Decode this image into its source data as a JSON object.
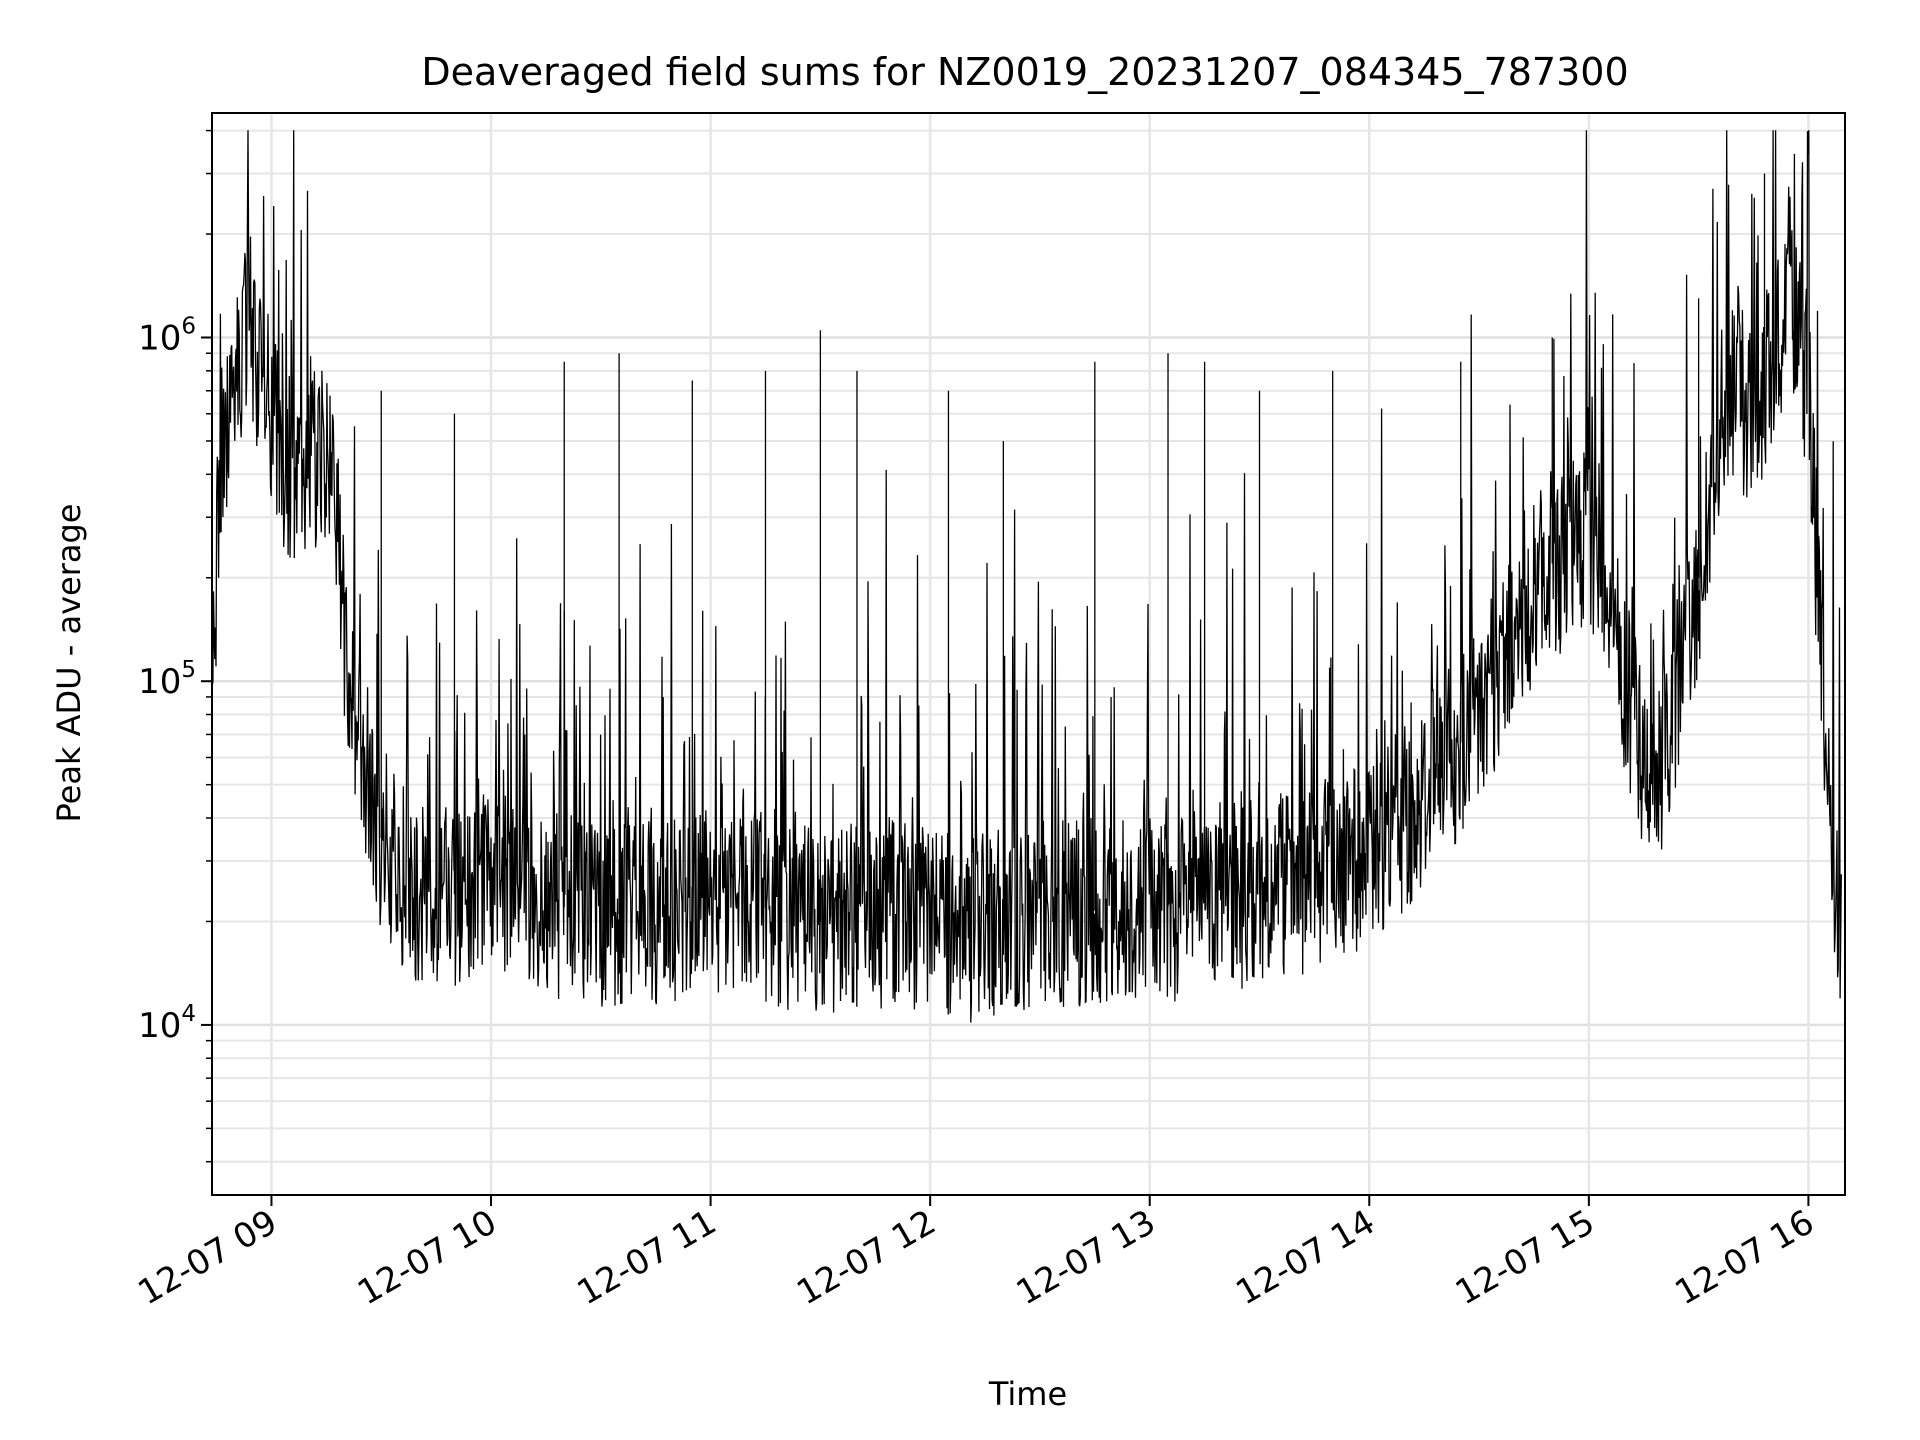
{
  "chart_data": {
    "type": "line",
    "title": "Deaveraged field sums for NZ0019_20231207_084345_787300",
    "xlabel": "Time",
    "ylabel": "Peak ADU - average",
    "yscale": "log",
    "ylim": [
      3200,
      4500000
    ],
    "xlim": [
      "2023-12-07 08:43:45",
      "2023-12-07 16:10:00"
    ],
    "grid": true,
    "x_ticks": [
      {
        "label": "12-07 09",
        "time": "2023-12-07 09:00:00"
      },
      {
        "label": "12-07 10",
        "time": "2023-12-07 10:00:00"
      },
      {
        "label": "12-07 11",
        "time": "2023-12-07 11:00:00"
      },
      {
        "label": "12-07 12",
        "time": "2023-12-07 12:00:00"
      },
      {
        "label": "12-07 13",
        "time": "2023-12-07 13:00:00"
      },
      {
        "label": "12-07 14",
        "time": "2023-12-07 14:00:00"
      },
      {
        "label": "12-07 15",
        "time": "2023-12-07 15:00:00"
      },
      {
        "label": "12-07 16",
        "time": "2023-12-07 16:00:00"
      }
    ],
    "y_ticks": [
      {
        "base": "10",
        "exp": "4",
        "value": 10000
      },
      {
        "base": "10",
        "exp": "5",
        "value": 100000
      },
      {
        "base": "10",
        "exp": "6",
        "value": 1000000
      }
    ],
    "series": [
      {
        "color": "#000000",
        "x": [
          "2023-12-07 08:44",
          "2023-12-07 08:47",
          "2023-12-07 08:50",
          "2023-12-07 08:53",
          "2023-12-07 08:56",
          "2023-12-07 08:58",
          "2023-12-07 09:00",
          "2023-12-07 09:03",
          "2023-12-07 09:06",
          "2023-12-07 09:09",
          "2023-12-07 09:12",
          "2023-12-07 09:15",
          "2023-12-07 09:18",
          "2023-12-07 09:21",
          "2023-12-07 09:25",
          "2023-12-07 09:30",
          "2023-12-07 09:35",
          "2023-12-07 09:40",
          "2023-12-07 09:45",
          "2023-12-07 09:50",
          "2023-12-07 09:55",
          "2023-12-07 10:00",
          "2023-12-07 10:10",
          "2023-12-07 10:20",
          "2023-12-07 10:30",
          "2023-12-07 10:40",
          "2023-12-07 10:50",
          "2023-12-07 11:00",
          "2023-12-07 11:10",
          "2023-12-07 11:20",
          "2023-12-07 11:30",
          "2023-12-07 11:40",
          "2023-12-07 11:50",
          "2023-12-07 12:00",
          "2023-12-07 12:10",
          "2023-12-07 12:20",
          "2023-12-07 12:30",
          "2023-12-07 12:40",
          "2023-12-07 12:50",
          "2023-12-07 13:00",
          "2023-12-07 13:10",
          "2023-12-07 13:20",
          "2023-12-07 13:30",
          "2023-12-07 13:40",
          "2023-12-07 13:50",
          "2023-12-07 14:00",
          "2023-12-07 14:10",
          "2023-12-07 14:20",
          "2023-12-07 14:30",
          "2023-12-07 14:40",
          "2023-12-07 14:50",
          "2023-12-07 15:00",
          "2023-12-07 15:05",
          "2023-12-07 15:10",
          "2023-12-07 15:15",
          "2023-12-07 15:20",
          "2023-12-07 15:25",
          "2023-12-07 15:30",
          "2023-12-07 15:35",
          "2023-12-07 15:40",
          "2023-12-07 15:45",
          "2023-12-07 15:50",
          "2023-12-07 15:55",
          "2023-12-07 16:00",
          "2023-12-07 16:03",
          "2023-12-07 16:06",
          "2023-12-07 16:08",
          "2023-12-07 16:09"
        ],
        "y": [
          150000,
          400000,
          700000,
          1200000,
          900000,
          800000,
          600000,
          420000,
          400000,
          450000,
          450000,
          420000,
          300000,
          100000,
          60000,
          35000,
          28000,
          25000,
          25000,
          24000,
          25000,
          26000,
          24000,
          22000,
          21000,
          21000,
          22000,
          23000,
          24000,
          20000,
          20000,
          21000,
          21000,
          20000,
          19000,
          20000,
          21000,
          21000,
          22000,
          22000,
          22000,
          24000,
          24000,
          26000,
          28000,
          32000,
          40000,
          55000,
          80000,
          140000,
          220000,
          250000,
          200000,
          100000,
          55000,
          60000,
          100000,
          200000,
          400000,
          700000,
          600000,
          800000,
          1500000,
          700000,
          150000,
          40000,
          22000,
          15000
        ]
      }
    ],
    "spikes": {
      "x": [
        "2023-12-07 09:30",
        "2023-12-07 09:50",
        "2023-12-07 10:20",
        "2023-12-07 10:35",
        "2023-12-07 10:55",
        "2023-12-07 11:15",
        "2023-12-07 11:30",
        "2023-12-07 11:40",
        "2023-12-07 12:05",
        "2023-12-07 12:20",
        "2023-12-07 12:45",
        "2023-12-07 13:05",
        "2023-12-07 13:15",
        "2023-12-07 13:30",
        "2023-12-07 13:50",
        "2023-12-07 14:25",
        "2023-12-07 14:50",
        "2023-12-07 15:30",
        "2023-12-07 15:48"
      ],
      "y": [
        700000,
        600000,
        850000,
        900000,
        750000,
        800000,
        1050000,
        800000,
        700000,
        500000,
        850000,
        900000,
        850000,
        700000,
        800000,
        850000,
        1000000,
        1300000,
        3000000
      ]
    }
  }
}
